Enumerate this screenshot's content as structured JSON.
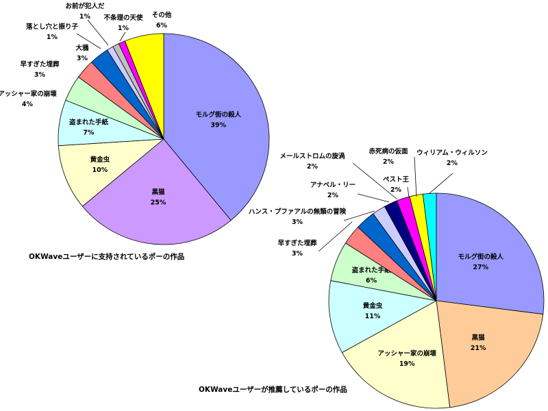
{
  "chart_data": [
    {
      "type": "pie",
      "title": "OKWaveユーザーに支持されているポーの作品",
      "slices": [
        {
          "label": "モルグ街の殺人",
          "value": 39,
          "value_label": "39%",
          "color": "#9999ff"
        },
        {
          "label": "黒猫",
          "value": 25,
          "value_label": "25%",
          "color": "#cc99ff"
        },
        {
          "label": "黄金虫",
          "value": 10,
          "value_label": "10%",
          "color": "#ffffcc"
        },
        {
          "label": "盗まれた手紙",
          "value": 7,
          "value_label": "7%",
          "color": "#ccffff"
        },
        {
          "label": "アッシャー家の崩壊",
          "value": 4,
          "value_label": "4%",
          "color": "#ccffcc"
        },
        {
          "label": "早すぎた埋葬",
          "value": 3,
          "value_label": "3%",
          "color": "#ff8080"
        },
        {
          "label": "大鴉",
          "value": 3,
          "value_label": "3%",
          "color": "#0066cc"
        },
        {
          "label": "落とし穴と振り子",
          "value": 1,
          "value_label": "1%",
          "color": "#ccccff"
        },
        {
          "label": "お前が犯人だ",
          "value": 1,
          "value_label": "1%",
          "color": "#c0c0c0"
        },
        {
          "label": "不条理の天使",
          "value": 1,
          "value_label": "1%",
          "color": "#ff00ff"
        },
        {
          "label": "その他",
          "value": 6,
          "value_label": "6%",
          "color": "#ffff00"
        }
      ]
    },
    {
      "type": "pie",
      "title": "OKWaveユーザーが推薦しているポーの作品",
      "slices": [
        {
          "label": "モルグ街の殺人",
          "value": 27,
          "value_label": "27%",
          "color": "#9999ff"
        },
        {
          "label": "黒猫",
          "value": 21,
          "value_label": "21%",
          "color": "#ffcc99"
        },
        {
          "label": "アッシャー家の崩壊",
          "value": 19,
          "value_label": "19%",
          "color": "#ffffcc"
        },
        {
          "label": "黄金虫",
          "value": 11,
          "value_label": "11%",
          "color": "#ccffff"
        },
        {
          "label": "盗まれた手紙",
          "value": 6,
          "value_label": "6%",
          "color": "#ccffcc"
        },
        {
          "label": "早すぎた埋葬",
          "value": 3,
          "value_label": "3%",
          "color": "#ff8080"
        },
        {
          "label": "ハンス・プファアルの無類の冒険",
          "value": 3,
          "value_label": "3%",
          "color": "#0066cc"
        },
        {
          "label": "アナベル・リー",
          "value": 2,
          "value_label": "2%",
          "color": "#ccccff"
        },
        {
          "label": "メールストロムの旋渦",
          "value": 2,
          "value_label": "2%",
          "color": "#000080"
        },
        {
          "label": "ペスト王",
          "value": 2,
          "value_label": "2%",
          "color": "#ff00ff"
        },
        {
          "label": "赤死病の仮面",
          "value": 2,
          "value_label": "2%",
          "color": "#ffff00"
        },
        {
          "label": "ウィリアム・ウィルソン",
          "value": 2,
          "value_label": "2%",
          "color": "#00ffff"
        }
      ]
    }
  ]
}
